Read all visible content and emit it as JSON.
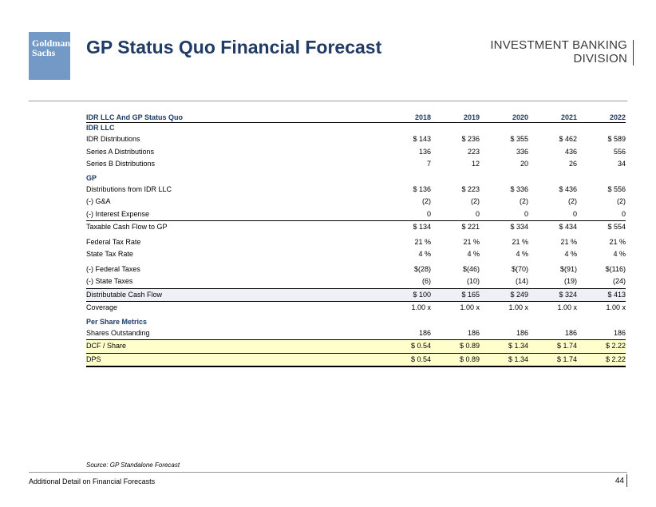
{
  "logo": {
    "line1": "Goldman",
    "line2": "Sachs",
    "bg_color": "#7399c6"
  },
  "title": "GP Status Quo Financial Forecast",
  "division": {
    "line1": "INVESTMENT BANKING",
    "line2": "DIVISION"
  },
  "table": {
    "header": {
      "label": "IDR LLC And GP Status Quo",
      "years": [
        "2018",
        "2019",
        "2020",
        "2021",
        "2022"
      ]
    },
    "sections": {
      "idr_llc": "IDR LLC",
      "gp": "GP",
      "per_share": "Per Share Metrics"
    },
    "rows": {
      "idr_distributions": {
        "label": "IDR Distributions",
        "values": [
          "$ 143",
          "$ 236",
          "$ 355",
          "$ 462",
          "$ 589"
        ]
      },
      "series_a": {
        "label": "Series A Distributions",
        "values": [
          "136",
          "223",
          "336",
          "436",
          "556"
        ]
      },
      "series_b": {
        "label": "Series B Distributions",
        "values": [
          "7",
          "12",
          "20",
          "26",
          "34"
        ]
      },
      "dist_from_idr": {
        "label": "Distributions from IDR LLC",
        "values": [
          "$ 136",
          "$ 223",
          "$ 336",
          "$ 436",
          "$ 556"
        ]
      },
      "ga": {
        "label": "(-) G&A",
        "values": [
          "(2)",
          "(2)",
          "(2)",
          "(2)",
          "(2)"
        ]
      },
      "interest": {
        "label": "(-) Interest Expense",
        "values": [
          "0",
          "0",
          "0",
          "0",
          "0"
        ]
      },
      "taxable_cf": {
        "label": "Taxable Cash Flow to GP",
        "values": [
          "$ 134",
          "$ 221",
          "$ 334",
          "$ 434",
          "$ 554"
        ]
      },
      "fed_rate": {
        "label": "Federal Tax Rate",
        "values": [
          "21 %",
          "21 %",
          "21 %",
          "21 %",
          "21 %"
        ]
      },
      "state_rate": {
        "label": "State Tax Rate",
        "values": [
          "4 %",
          "4 %",
          "4 %",
          "4 %",
          "4 %"
        ]
      },
      "fed_taxes": {
        "label": "(-) Federal Taxes",
        "values": [
          "$(28)",
          "$(46)",
          "$(70)",
          "$(91)",
          "$(116)"
        ]
      },
      "state_taxes": {
        "label": "(-) State Taxes",
        "values": [
          "(6)",
          "(10)",
          "(14)",
          "(19)",
          "(24)"
        ]
      },
      "dcf": {
        "label": "Distributable Cash Flow",
        "values": [
          "$ 100",
          "$ 165",
          "$ 249",
          "$ 324",
          "$ 413"
        ]
      },
      "coverage": {
        "label": "Coverage",
        "values": [
          "1.00 x",
          "1.00 x",
          "1.00 x",
          "1.00 x",
          "1.00 x"
        ]
      },
      "shares": {
        "label": "Shares Outstanding",
        "values": [
          "186",
          "186",
          "186",
          "186",
          "186"
        ]
      },
      "dcf_share": {
        "label": "DCF / Share",
        "values": [
          "$ 0.54",
          "$ 0.89",
          "$ 1.34",
          "$ 1.74",
          "$ 2.22"
        ]
      },
      "dps": {
        "label": "DPS",
        "values": [
          "$ 0.54",
          "$ 0.89",
          "$ 1.34",
          "$ 1.74",
          "$ 2.22"
        ]
      }
    }
  },
  "source": "Source: GP Standalone Forecast",
  "footer": {
    "left": "Additional Detail on Financial Forecasts",
    "page": "44"
  },
  "colors": {
    "title": "#1f3b66",
    "highlight": "#ffffcc",
    "dcf_row": "#eef0f6"
  }
}
